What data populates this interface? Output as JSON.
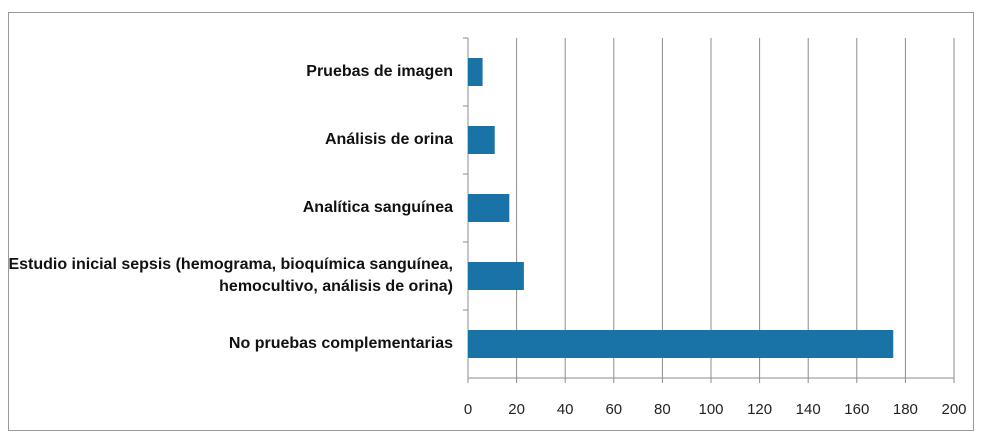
{
  "chart_data": {
    "type": "bar",
    "orientation": "horizontal",
    "categories": [
      "Pruebas de imagen",
      "Análisis de orina",
      "Analítica sanguínea",
      "Estudio inicial sepsis (hemograma, bioquímica sanguínea, hemocultivo, análisis de orina)",
      "No pruebas complementarias"
    ],
    "values": [
      6,
      11,
      17,
      23,
      175
    ],
    "color": "#1a73a6",
    "xlim": [
      0,
      200
    ],
    "xticks": [
      0,
      20,
      40,
      60,
      80,
      100,
      120,
      140,
      160,
      180,
      200
    ],
    "grid": true
  }
}
